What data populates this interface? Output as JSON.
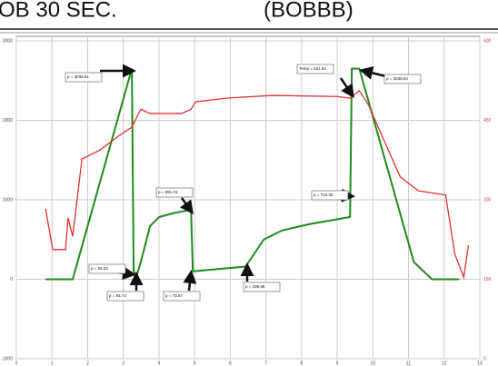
{
  "chart_data": {
    "type": "line",
    "title": "OB 30 SEC.",
    "subtitle": "(BOBBB)",
    "xlim": [
      0,
      13
    ],
    "xticks": [
      0,
      1,
      2,
      3,
      4,
      5,
      6,
      7,
      8,
      9,
      10,
      11,
      12,
      13
    ],
    "ylim": [
      -1000,
      3000
    ],
    "yticks": [
      -1000,
      0,
      1000,
      2000,
      3000
    ],
    "y2lim": [
      0,
      600
    ],
    "y2ticks": [
      0,
      150,
      300,
      450,
      600
    ],
    "grid": true,
    "series": [
      {
        "name": "p",
        "color": "#1e8a1e",
        "x": [
          0.82,
          1.58,
          3.24,
          3.29,
          3.37,
          3.49,
          3.75,
          4.01,
          4.39,
          4.9,
          4.95,
          6.43,
          6.94,
          7.45,
          8.21,
          9.36,
          9.41,
          9.62,
          11.15,
          11.66,
          12.42
        ],
        "values": [
          0,
          0,
          2650,
          100,
          40,
          216,
          670,
          784,
          830,
          875,
          100,
          160,
          500,
          614,
          693,
          784,
          2650,
          2650,
          216,
          0,
          0
        ]
      },
      {
        "name": "Temp",
        "color": "#e03030",
        "axis": "y2",
        "x": [
          0.82,
          1.02,
          1.38,
          1.45,
          1.58,
          1.84,
          2.35,
          2.86,
          3.24,
          3.49,
          3.75,
          4.64,
          4.9,
          5.03,
          5.92,
          7.19,
          8.98,
          9.36,
          9.62,
          9.87,
          10.26,
          10.77,
          11.28,
          12.04,
          12.3,
          12.55,
          12.68
        ],
        "values": [
          283,
          206,
          206,
          266,
          231,
          377,
          394,
          420,
          437,
          471,
          463,
          463,
          471,
          485,
          492,
          497,
          495,
          492,
          506,
          480,
          420,
          343,
          317,
          309,
          197,
          154,
          214
        ]
      }
    ],
    "annotations": [
      "p = 3038.51",
      "Temp = 531.84",
      "p = 3038.84",
      "p = 891.31",
      "p = 733.35",
      "p = 55.33",
      "p = 94.72",
      "p = 73.67",
      "p = 198.98"
    ]
  }
}
